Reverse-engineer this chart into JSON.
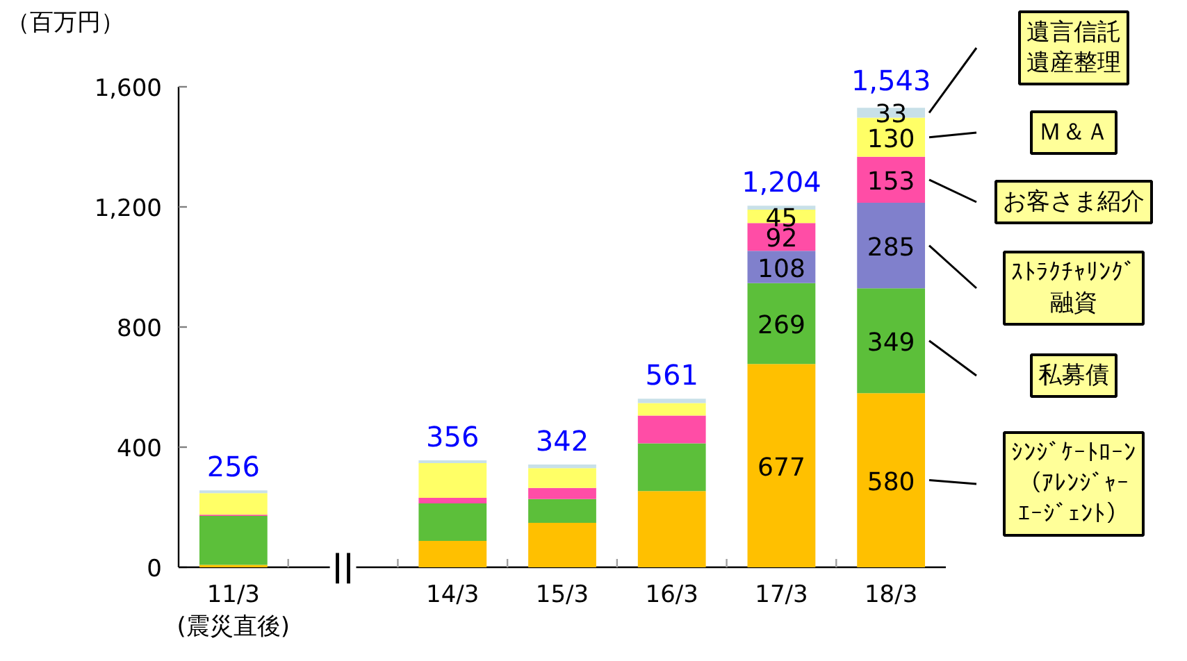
{
  "chart_data": {
    "type": "bar",
    "stacked": true,
    "ylabel": "（百万円）",
    "categories": [
      "11/3\n(震災直後)",
      null,
      "14/3",
      "15/3",
      "16/3",
      "17/3",
      "18/3"
    ],
    "ylim": [
      0,
      1600
    ],
    "yticks": [
      0,
      400,
      800,
      {
        "value": 1200,
        "label": "1,200"
      },
      {
        "value": 1600,
        "label": "1,600"
      }
    ],
    "series": [
      {
        "name": "ｼﾝｼﾞｹｰﾄﾛｰﾝ（ｱﾚﾝｼﾞｬｰｴｰｼﾞｪﾝﾄ）",
        "color": "#ffc000",
        "values": [
          8,
          null,
          88,
          148,
          254,
          677,
          580
        ],
        "value_labels": [
          null,
          null,
          null,
          null,
          null,
          "677",
          "580"
        ]
      },
      {
        "name": "私募債",
        "color": "#5cbf3a",
        "values": [
          163,
          null,
          125,
          79,
          159,
          269,
          349
        ],
        "value_labels": [
          null,
          null,
          null,
          null,
          null,
          "269",
          "349"
        ]
      },
      {
        "name": "ｽﾄﾗｸﾁｬﾘﾝｸﾞ融資",
        "color": "#8080cc",
        "values": [
          null,
          null,
          null,
          null,
          null,
          108,
          285
        ],
        "value_labels": [
          null,
          null,
          null,
          null,
          null,
          "108",
          "285"
        ]
      },
      {
        "name": "お客さま紹介",
        "color": "#ff4da6",
        "values": [
          4,
          null,
          18,
          37,
          92,
          92,
          153
        ],
        "value_labels": [
          null,
          null,
          null,
          null,
          null,
          "92",
          "153"
        ]
      },
      {
        "name": "Ｍ＆Ａ",
        "color": "#ffff66",
        "values": [
          72,
          null,
          116,
          66,
          42,
          45,
          130
        ],
        "value_labels": [
          null,
          null,
          null,
          null,
          null,
          "45",
          "130"
        ]
      },
      {
        "name": "遺言信託遺産整理",
        "color": "#c8e0e8",
        "values": [
          9,
          null,
          9,
          12,
          14,
          13,
          33
        ],
        "value_labels": [
          null,
          null,
          null,
          null,
          null,
          null,
          "33"
        ]
      }
    ],
    "annotations": [
      "||",
      {
        "text": "256",
        "x": "11/3\n(震災直後)",
        "y": 256
      },
      {
        "text": "356",
        "x": "14/3",
        "y": 356
      },
      {
        "text": "342",
        "x": "15/3",
        "y": 342
      },
      {
        "text": "561",
        "x": "16/3",
        "y": 561
      },
      {
        "text": "1,204",
        "x": "17/3",
        "y": 1204
      },
      {
        "text": "1,543",
        "x": "18/3",
        "y": 1543
      }
    ]
  }
}
